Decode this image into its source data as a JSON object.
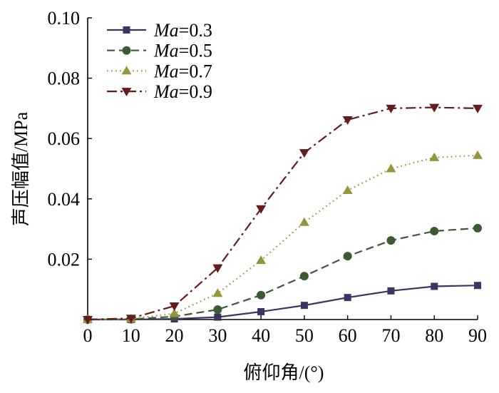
{
  "chart_data": {
    "type": "line",
    "x": [
      0,
      10,
      20,
      30,
      40,
      50,
      60,
      70,
      80,
      90
    ],
    "series": [
      {
        "name": "Ma=0.3",
        "values": [
          0,
          0,
          0.0002,
          0.0008,
          0.0026,
          0.0047,
          0.0073,
          0.0095,
          0.011,
          0.0113
        ],
        "color": "#3b3564",
        "line_style": "solid",
        "marker": "square"
      },
      {
        "name": "Ma=0.5",
        "values": [
          0,
          0.0001,
          0.001,
          0.0033,
          0.0081,
          0.0144,
          0.021,
          0.0262,
          0.0293,
          0.0303
        ],
        "color": "#3d5a34",
        "line_style": "dashed",
        "marker": "circle"
      },
      {
        "name": "Ma=0.7",
        "values": [
          0,
          0.0002,
          0.002,
          0.0087,
          0.0196,
          0.0322,
          0.0428,
          0.05,
          0.0537,
          0.0544
        ],
        "color": "#95953c",
        "line_style": "dotted",
        "marker": "triangle-up"
      },
      {
        "name": "Ma=0.9",
        "values": [
          0,
          0.0004,
          0.0045,
          0.0171,
          0.0367,
          0.0553,
          0.0662,
          0.07,
          0.0703,
          0.07
        ],
        "color": "#641c1c",
        "line_style": "dash-dot",
        "marker": "triangle-down"
      }
    ],
    "xlabel": "俯仰角/(°)",
    "ylabel": "声压幅值/MPa",
    "xlim": [
      0,
      90
    ],
    "ylim": [
      0,
      0.1
    ],
    "x_ticks": [
      "0",
      "10",
      "20",
      "30",
      "40",
      "50",
      "60",
      "70",
      "80",
      "90"
    ],
    "y_ticks": [
      "0.02",
      "0.04",
      "0.06",
      "0.08",
      "0.10"
    ],
    "grid": false,
    "legend": "top-left"
  }
}
